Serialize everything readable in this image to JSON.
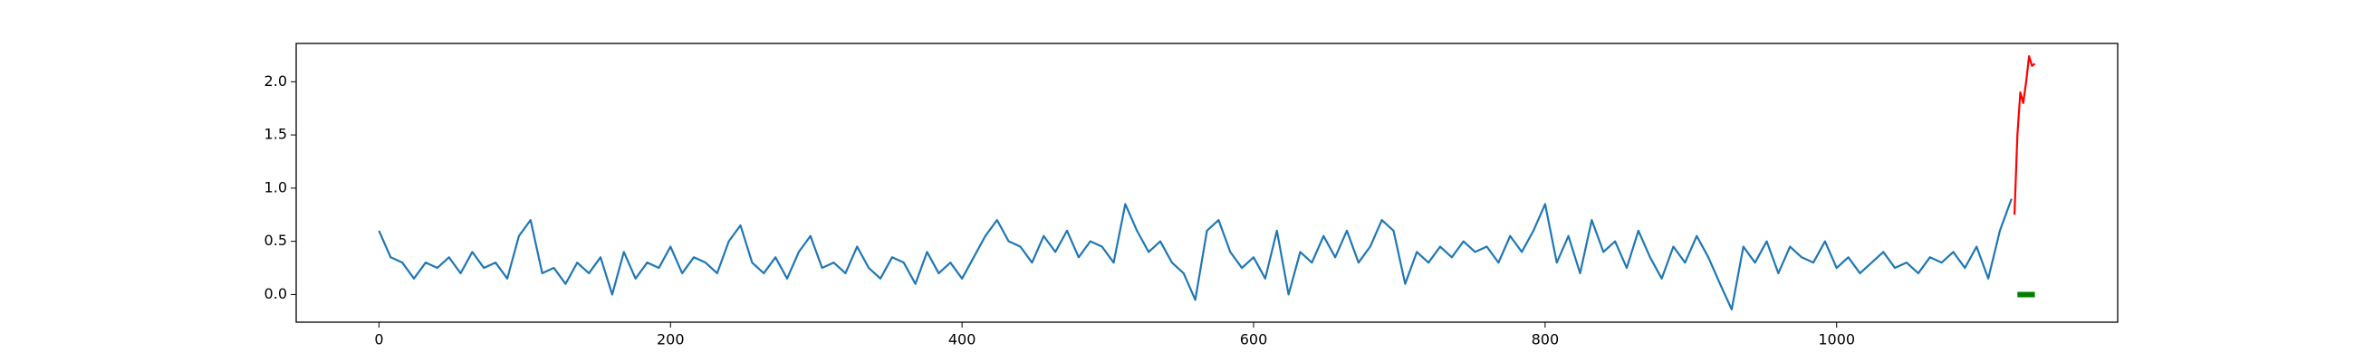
{
  "chart_data": {
    "type": "line",
    "xlim": [
      -56.8,
      1192.8
    ],
    "ylim": [
      -0.26,
      2.36
    ],
    "xticks": [
      0,
      200,
      400,
      600,
      800,
      1000
    ],
    "yticks": [
      {
        "value": 0,
        "label": "0.0"
      },
      {
        "value": 0.5,
        "label": "0.5"
      },
      {
        "value": 1,
        "label": "1.0"
      },
      {
        "value": 1.5,
        "label": "1.5"
      },
      {
        "value": 2,
        "label": "2.0"
      }
    ],
    "series": [
      {
        "color": "#1f77b4",
        "x": [
          0,
          8,
          16,
          24,
          32,
          40,
          48,
          56,
          64,
          72,
          80,
          88,
          96,
          104,
          112,
          120,
          128,
          136,
          144,
          152,
          160,
          168,
          176,
          184,
          192,
          200,
          208,
          216,
          224,
          232,
          240,
          248,
          256,
          264,
          272,
          280,
          288,
          296,
          304,
          312,
          320,
          328,
          336,
          344,
          352,
          360,
          368,
          376,
          384,
          392,
          400,
          408,
          416,
          424,
          432,
          440,
          448,
          456,
          464,
          472,
          480,
          488,
          496,
          504,
          512,
          520,
          528,
          536,
          544,
          552,
          560,
          568,
          576,
          584,
          592,
          600,
          608,
          616,
          624,
          632,
          640,
          648,
          656,
          664,
          672,
          680,
          688,
          696,
          704,
          712,
          720,
          728,
          736,
          744,
          752,
          760,
          768,
          776,
          784,
          792,
          800,
          808,
          816,
          824,
          832,
          840,
          848,
          856,
          864,
          872,
          880,
          888,
          896,
          904,
          912,
          920,
          928,
          936,
          944,
          952,
          960,
          968,
          976,
          984,
          992,
          1000,
          1008,
          1016,
          1024,
          1032,
          1040,
          1048,
          1056,
          1064,
          1072,
          1080,
          1088,
          1096,
          1104,
          1112,
          1120
        ],
        "values": [
          0.6,
          0.35,
          0.3,
          0.15,
          0.3,
          0.25,
          0.35,
          0.2,
          0.4,
          0.25,
          0.3,
          0.15,
          0.55,
          0.7,
          0.2,
          0.25,
          0.1,
          0.3,
          0.2,
          0.35,
          0.0,
          0.4,
          0.15,
          0.3,
          0.25,
          0.45,
          0.2,
          0.35,
          0.3,
          0.2,
          0.5,
          0.65,
          0.3,
          0.2,
          0.35,
          0.15,
          0.4,
          0.55,
          0.25,
          0.3,
          0.2,
          0.45,
          0.25,
          0.15,
          0.35,
          0.3,
          0.1,
          0.4,
          0.2,
          0.3,
          0.15,
          0.35,
          0.55,
          0.7,
          0.5,
          0.45,
          0.3,
          0.55,
          0.4,
          0.6,
          0.35,
          0.5,
          0.45,
          0.3,
          0.85,
          0.6,
          0.4,
          0.5,
          0.3,
          0.2,
          -0.05,
          0.6,
          0.7,
          0.4,
          0.25,
          0.35,
          0.15,
          0.6,
          0.0,
          0.4,
          0.3,
          0.55,
          0.35,
          0.6,
          0.3,
          0.45,
          0.7,
          0.6,
          0.1,
          0.4,
          0.3,
          0.45,
          0.35,
          0.5,
          0.4,
          0.45,
          0.3,
          0.55,
          0.4,
          0.6,
          0.85,
          0.3,
          0.55,
          0.2,
          0.7,
          0.4,
          0.5,
          0.25,
          0.6,
          0.35,
          0.15,
          0.45,
          0.3,
          0.55,
          0.35,
          0.1,
          -0.14,
          0.45,
          0.3,
          0.5,
          0.2,
          0.45,
          0.35,
          0.3,
          0.5,
          0.25,
          0.35,
          0.2,
          0.3,
          0.4,
          0.25,
          0.3,
          0.2,
          0.35,
          0.3,
          0.4,
          0.25,
          0.45,
          0.15,
          0.6,
          0.9
        ]
      },
      {
        "color": "#ff0000",
        "x": [
          1122,
          1124,
          1126,
          1128,
          1130,
          1132,
          1134,
          1136
        ],
        "values": [
          0.75,
          1.5,
          1.9,
          1.8,
          2.0,
          2.24,
          2.15,
          2.17
        ]
      },
      {
        "color": "#008000",
        "x": [
          1124,
          1136
        ],
        "values": [
          0,
          0
        ]
      }
    ]
  }
}
